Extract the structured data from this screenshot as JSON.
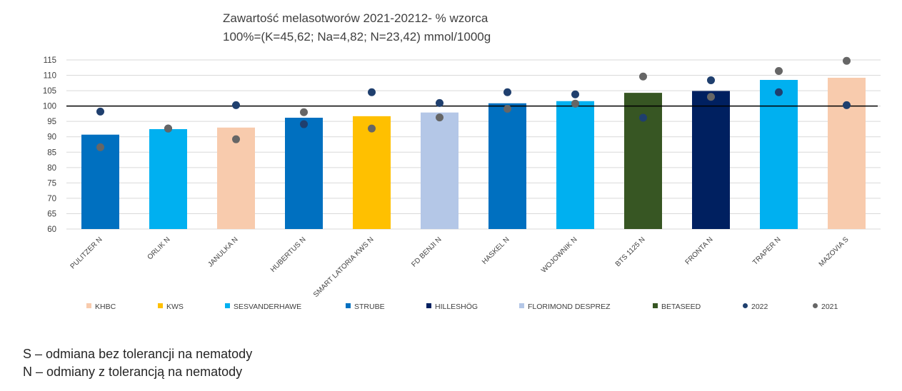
{
  "chart_data": {
    "type": "bar",
    "title": "Zawartość melasotworów 2021-20212- % wzorca",
    "subtitle": "100%=(K=45,62; Na=4,82; N=23,42) mmol/1000g",
    "categories": [
      "PULITZER N",
      "ORLIK N",
      "JANULKA N",
      "HUBERTUS N",
      "SMART LATORIA KWS N",
      "FD BENJI N",
      "HASKEL N",
      "WOJOWNIK N",
      "BTS 1125 N",
      "FRONTA N",
      "TRAPER N",
      "MAZOVIA S"
    ],
    "bar_values": [
      90.7,
      92.5,
      93.0,
      96.2,
      96.7,
      97.9,
      100.9,
      101.6,
      104.3,
      104.9,
      108.5,
      109.2
    ],
    "bar_groups": [
      "STRUBE",
      "SESVANDERHAWE",
      "KHBC",
      "STRUBE",
      "KWS",
      "FLORIMOND DESPREZ",
      "STRUBE",
      "SESVANDERHAWE",
      "BETASEED",
      "HILLESHÖG",
      "SESVANDERHAWE",
      "KHBC"
    ],
    "series": [
      {
        "name": "2022",
        "values": [
          98.2,
          92.7,
          100.3,
          94.1,
          104.5,
          101.0,
          104.5,
          103.8,
          96.2,
          108.4,
          104.5,
          100.3
        ]
      },
      {
        "name": "2021",
        "values": [
          86.6,
          92.7,
          89.2,
          98.0,
          92.7,
          96.3,
          99.1,
          100.8,
          109.6,
          103.0,
          111.4,
          114.7
        ]
      }
    ],
    "groups": [
      {
        "name": "KHBC",
        "color": "#F8CBAD"
      },
      {
        "name": "KWS",
        "color": "#FFC000"
      },
      {
        "name": "SESVANDERHAWE",
        "color": "#00B0F0"
      },
      {
        "name": "STRUBE",
        "color": "#0070C0"
      },
      {
        "name": "HILLESHÖG",
        "color": "#002060"
      },
      {
        "name": "FLORIMOND DESPREZ",
        "color": "#B4C7E7"
      },
      {
        "name": "BETASEED",
        "color": "#375623"
      }
    ],
    "series_colors": {
      "2022": "#1F3F6E",
      "2021": "#666666"
    },
    "reference_line": 100,
    "ylim": [
      60,
      115
    ],
    "yticks": [
      60,
      65,
      70,
      75,
      80,
      85,
      90,
      95,
      100,
      105,
      110,
      115
    ],
    "grid": true,
    "legend_position": "bottom",
    "xlabel": "",
    "ylabel": ""
  },
  "notes": [
    "S – odmiana bez tolerancji na nematody",
    "N – odmiany z tolerancją na nematody"
  ]
}
